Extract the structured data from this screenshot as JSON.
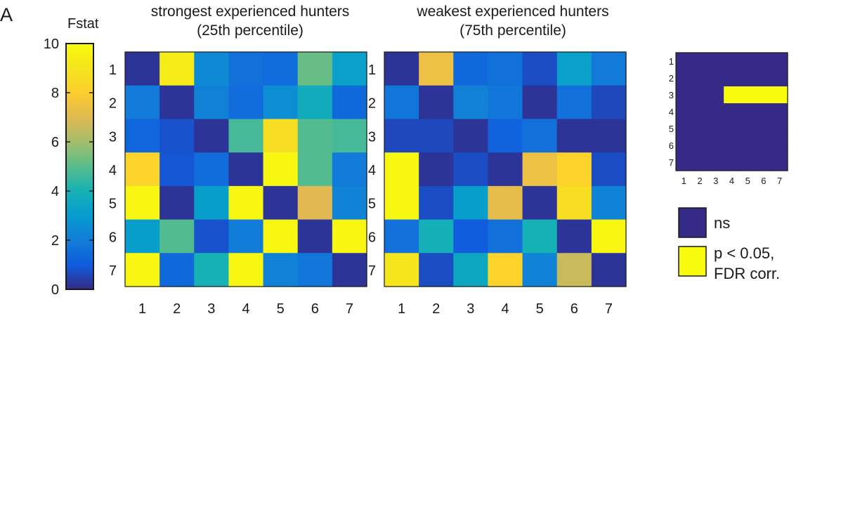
{
  "panel_label": "A",
  "colorbar": {
    "label": "Fstat",
    "min": 0,
    "max": 10,
    "ticks": [
      "0",
      "2",
      "4",
      "6",
      "8",
      "10"
    ]
  },
  "colors": {
    "ns": "#352a87",
    "significant": "#f9fb0e",
    "frame": "#1a1a1a"
  },
  "chart_data": [
    {
      "type": "heatmap",
      "title_line1": "strongest experienced hunters",
      "title_line2": "(25th percentile)",
      "x_categories": [
        "1",
        "2",
        "3",
        "4",
        "5",
        "6",
        "7"
      ],
      "y_categories": [
        "1",
        "2",
        "3",
        "4",
        "5",
        "6",
        "7"
      ],
      "value_range": [
        0,
        10
      ],
      "values": [
        [
          0.2,
          9.3,
          2.4,
          1.6,
          1.5,
          5.2,
          3.2
        ],
        [
          1.9,
          0.2,
          2.1,
          1.5,
          2.5,
          3.7,
          1.4
        ],
        [
          1.3,
          0.8,
          0.2,
          4.7,
          8.7,
          4.9,
          4.7
        ],
        [
          8.2,
          0.9,
          1.5,
          0.2,
          9.8,
          4.9,
          1.9
        ],
        [
          9.8,
          0.2,
          3.1,
          9.8,
          0.2,
          7.0,
          2.2
        ],
        [
          3.1,
          4.9,
          0.8,
          2.0,
          9.8,
          0.2,
          9.8
        ],
        [
          9.8,
          1.4,
          4.0,
          9.8,
          2.1,
          1.8,
          0.2
        ]
      ]
    },
    {
      "type": "heatmap",
      "title_line1": "weakest experienced hunters",
      "title_line2": "(75th percentile)",
      "x_categories": [
        "1",
        "2",
        "3",
        "4",
        "5",
        "6",
        "7"
      ],
      "y_categories": [
        "1",
        "2",
        "3",
        "4",
        "5",
        "6",
        "7"
      ],
      "value_range": [
        0,
        10
      ],
      "values": [
        [
          0.2,
          7.4,
          1.4,
          1.6,
          0.7,
          3.2,
          1.9
        ],
        [
          1.8,
          0.2,
          2.1,
          1.8,
          0.2,
          1.6,
          0.6
        ],
        [
          0.6,
          0.6,
          0.2,
          1.2,
          1.6,
          0.2,
          0.2
        ],
        [
          9.8,
          0.2,
          0.7,
          0.2,
          7.4,
          8.2,
          0.7
        ],
        [
          9.8,
          0.7,
          3.1,
          7.2,
          0.2,
          8.7,
          2.2
        ],
        [
          1.6,
          3.9,
          1.0,
          1.6,
          4.0,
          0.2,
          9.8
        ],
        [
          9.0,
          0.7,
          3.5,
          8.2,
          2.2,
          6.6,
          0.2
        ]
      ]
    },
    {
      "type": "heatmap",
      "subtype": "significance-mask",
      "x_categories": [
        "1",
        "2",
        "3",
        "4",
        "5",
        "6",
        "7"
      ],
      "y_categories": [
        "1",
        "2",
        "3",
        "4",
        "5",
        "6",
        "7"
      ],
      "values": [
        [
          0,
          0,
          0,
          0,
          0,
          0,
          0
        ],
        [
          0,
          0,
          0,
          0,
          0,
          0,
          0
        ],
        [
          0,
          0,
          0,
          1,
          1,
          1,
          1
        ],
        [
          0,
          0,
          0,
          0,
          0,
          0,
          0
        ],
        [
          0,
          0,
          0,
          0,
          0,
          0,
          0
        ],
        [
          0,
          0,
          0,
          0,
          0,
          0,
          0
        ],
        [
          0,
          0,
          0,
          0,
          0,
          0,
          0
        ]
      ],
      "legend": [
        {
          "label": "ns",
          "value": 0
        },
        {
          "label_line1": "p < 0.05,",
          "label_line2": "FDR corr.",
          "value": 1
        }
      ]
    }
  ]
}
